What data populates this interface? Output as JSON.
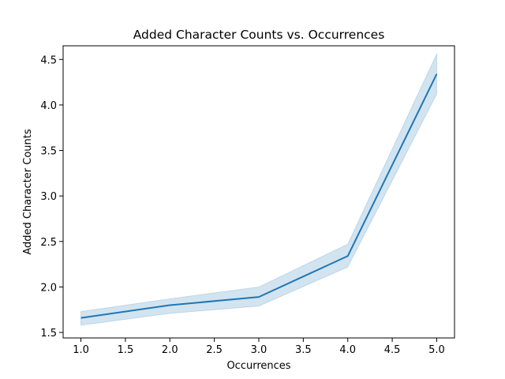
{
  "chart_data": {
    "type": "line",
    "title": "Added Character Counts vs. Occurrences",
    "xlabel": "Occurrences",
    "ylabel": "Added Character Counts",
    "xlim": [
      0.8,
      5.2
    ],
    "ylim": [
      1.44,
      4.65
    ],
    "x_ticks": [
      1.0,
      1.5,
      2.0,
      2.5,
      3.0,
      3.5,
      4.0,
      4.5,
      5.0
    ],
    "x_tick_labels": [
      "1.0",
      "1.5",
      "2.0",
      "2.5",
      "3.0",
      "3.5",
      "4.0",
      "4.5",
      "5.0"
    ],
    "y_ticks": [
      1.5,
      2.0,
      2.5,
      3.0,
      3.5,
      4.0,
      4.5
    ],
    "y_tick_labels": [
      "1.5",
      "2.0",
      "2.5",
      "3.0",
      "3.5",
      "4.0",
      "4.5"
    ],
    "grid": false,
    "line_color": "#1f77b4",
    "band_color": "#1f77b4",
    "series": [
      {
        "x": [
          1,
          2,
          3,
          4,
          5
        ],
        "y": [
          1.66,
          1.8,
          1.89,
          2.34,
          4.34
        ],
        "ci_lower": [
          1.58,
          1.71,
          1.79,
          2.22,
          4.12
        ],
        "ci_upper": [
          1.73,
          1.87,
          2.0,
          2.47,
          4.56
        ]
      }
    ]
  }
}
